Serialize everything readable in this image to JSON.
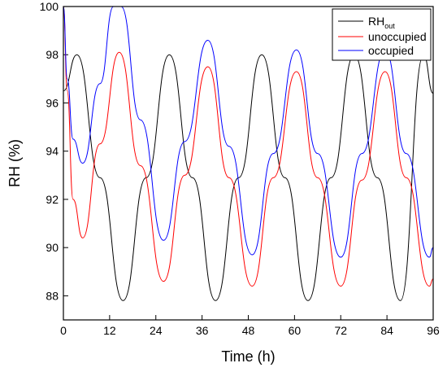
{
  "chart_data": {
    "type": "line",
    "xlabel": "Time (h)",
    "ylabel": "RH (%)",
    "xlim": [
      0,
      96
    ],
    "ylim": [
      87,
      100
    ],
    "x_ticks": [
      0,
      12,
      24,
      36,
      48,
      60,
      72,
      84,
      96
    ],
    "y_ticks": [
      88,
      90,
      92,
      94,
      96,
      98,
      100
    ],
    "grid": false,
    "legend_position": "top-right",
    "series": [
      {
        "name": "RH_out",
        "legend_main": "RH",
        "legend_sub": "out",
        "color": "#000000",
        "x": [
          0,
          3.5,
          9.5,
          15.5,
          21.5,
          27.5,
          33.5,
          39.5,
          45.5,
          51.5,
          57.5,
          63.5,
          69.5,
          75.5,
          81.5,
          87.5,
          93.5,
          96
        ],
        "y": [
          96.5,
          98.0,
          92.9,
          87.8,
          92.9,
          98.0,
          92.9,
          87.8,
          92.9,
          98.0,
          92.9,
          87.8,
          92.9,
          98.0,
          92.9,
          87.8,
          98.0,
          96.4
        ]
      },
      {
        "name": "unoccupied",
        "color": "#ff0000",
        "x": [
          0,
          1,
          2.5,
          5,
          9.5,
          14.5,
          20,
          26,
          31.5,
          37.5,
          43,
          49,
          54.5,
          60.5,
          66,
          72,
          77.5,
          83.5,
          89,
          95,
          96
        ],
        "y": [
          100,
          96.5,
          92.0,
          90.4,
          94.3,
          98.1,
          93.4,
          88.6,
          93.0,
          97.5,
          92.9,
          88.4,
          92.9,
          97.3,
          92.9,
          88.4,
          92.8,
          97.3,
          92.9,
          88.4,
          88.7
        ]
      },
      {
        "name": "occupied",
        "color": "#0000ff",
        "x": [
          0,
          1,
          2.5,
          5,
          9.5,
          13,
          15,
          20,
          26,
          31.5,
          37.5,
          43,
          49,
          54.5,
          60.5,
          66,
          72,
          77.5,
          83.5,
          89,
          95,
          96
        ],
        "y": [
          100,
          97.0,
          94.5,
          93.5,
          96.8,
          100,
          100,
          95.3,
          90.3,
          94.4,
          98.6,
          94.2,
          89.7,
          93.9,
          98.2,
          93.9,
          89.6,
          93.9,
          98.2,
          93.9,
          89.6,
          90.0
        ]
      }
    ]
  }
}
